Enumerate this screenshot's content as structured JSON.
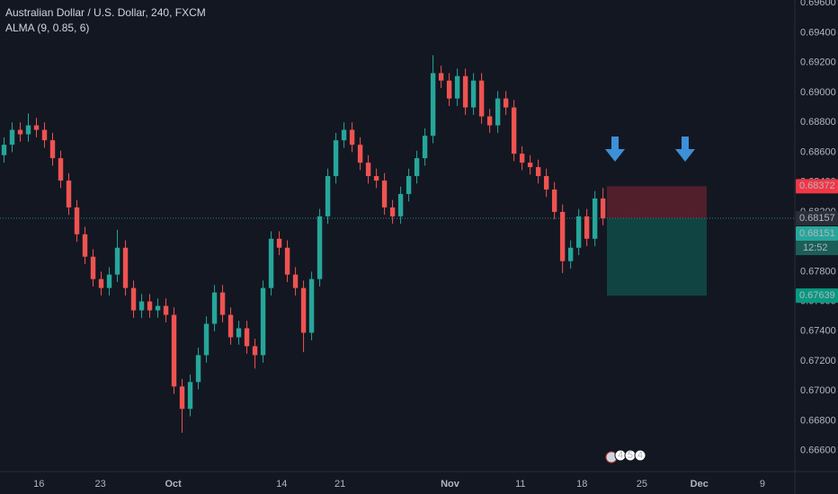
{
  "chart_data": {
    "type": "candlestick",
    "title": "Australian Dollar / U.S. Dollar, 240, FXCM",
    "subtitle": "ALMA (9, 0.85, 6)",
    "up_color": "#26a69a",
    "down_color": "#ef5350",
    "grid": true,
    "xlim": [
      0,
      98.2
    ],
    "xticks": [
      {
        "value": 4.8,
        "label": "16"
      },
      {
        "value": 12.4,
        "label": "23"
      },
      {
        "value": 21.4,
        "label": "Oct"
      },
      {
        "value": 34.8,
        "label": "14"
      },
      {
        "value": 42,
        "label": "21"
      },
      {
        "value": 55.6,
        "label": "Nov"
      },
      {
        "value": 64.3,
        "label": "11"
      },
      {
        "value": 71.9,
        "label": "18"
      },
      {
        "value": 79.3,
        "label": "25"
      },
      {
        "value": 86.4,
        "label": "Dec"
      },
      {
        "value": 94.2,
        "label": "9"
      }
    ],
    "ylim": [
      0.6646,
      0.6962
    ],
    "yticks": [
      {
        "value": 0.696,
        "label": "0.69600"
      },
      {
        "value": 0.694,
        "label": "0.69400"
      },
      {
        "value": 0.692,
        "label": "0.69200"
      },
      {
        "value": 0.69,
        "label": "0.69000"
      },
      {
        "value": 0.688,
        "label": "0.68800"
      },
      {
        "value": 0.686,
        "label": "0.68600"
      },
      {
        "value": 0.684,
        "label": "0.68400"
      },
      {
        "value": 0.682,
        "label": "0.68200"
      },
      {
        "value": 0.68,
        "label": "0.68000"
      },
      {
        "value": 0.678,
        "label": "0.67800"
      },
      {
        "value": 0.676,
        "label": "0.67600"
      },
      {
        "value": 0.674,
        "label": "0.67400"
      },
      {
        "value": 0.672,
        "label": "0.67200"
      },
      {
        "value": 0.67,
        "label": "0.67000"
      },
      {
        "value": 0.668,
        "label": "0.66800"
      },
      {
        "value": 0.666,
        "label": "0.66600"
      }
    ],
    "open": [
      0.6858,
      0.6865,
      0.6875,
      0.6872,
      0.6878,
      0.6875,
      0.6868,
      0.6856,
      0.6841,
      0.6823,
      0.6805,
      0.679,
      0.6775,
      0.6769,
      0.6778,
      0.6796,
      0.6769,
      0.6754,
      0.676,
      0.6754,
      0.6757,
      0.6751,
      0.6703,
      0.6688,
      0.6706,
      0.6724,
      0.6745,
      0.6766,
      0.6751,
      0.6736,
      0.6742,
      0.673,
      0.6724,
      0.6769,
      0.6802,
      0.6796,
      0.6778,
      0.6769,
      0.6739,
      0.6775,
      0.6817,
      0.6844,
      0.6868,
      0.6875,
      0.6865,
      0.6853,
      0.6844,
      0.6841,
      0.6823,
      0.6817,
      0.6832,
      0.6844,
      0.6856,
      0.6871,
      0.6913,
      0.6908,
      0.6896,
      0.6911,
      0.689,
      0.6908,
      0.6884,
      0.6878,
      0.6896,
      0.689,
      0.6859,
      0.6853,
      0.685,
      0.6844,
      0.6835,
      0.682,
      0.6787,
      0.6796,
      0.6817,
      0.6802,
      0.6829
    ],
    "high": [
      0.687,
      0.688,
      0.688,
      0.6886,
      0.6883,
      0.688,
      0.6873,
      0.6861,
      0.6846,
      0.6828,
      0.681,
      0.6795,
      0.678,
      0.6783,
      0.6808,
      0.6801,
      0.6774,
      0.6765,
      0.6765,
      0.6762,
      0.6762,
      0.6756,
      0.6708,
      0.6711,
      0.6729,
      0.675,
      0.6771,
      0.6771,
      0.6756,
      0.6747,
      0.6747,
      0.6735,
      0.6774,
      0.6807,
      0.6807,
      0.6801,
      0.6783,
      0.6774,
      0.678,
      0.6822,
      0.6849,
      0.6873,
      0.688,
      0.688,
      0.687,
      0.6858,
      0.6849,
      0.6846,
      0.6828,
      0.6837,
      0.6849,
      0.6861,
      0.6876,
      0.6925,
      0.6918,
      0.6913,
      0.6916,
      0.6916,
      0.6913,
      0.6913,
      0.6889,
      0.6901,
      0.6901,
      0.6895,
      0.6864,
      0.6858,
      0.6855,
      0.6849,
      0.684,
      0.6825,
      0.6801,
      0.6822,
      0.6822,
      0.6834,
      0.6836
    ],
    "low": [
      0.6853,
      0.686,
      0.6867,
      0.6867,
      0.687,
      0.6863,
      0.6851,
      0.6836,
      0.6818,
      0.68,
      0.6785,
      0.677,
      0.6764,
      0.6764,
      0.6773,
      0.6764,
      0.6749,
      0.6749,
      0.6749,
      0.6749,
      0.6746,
      0.6698,
      0.6672,
      0.6683,
      0.6701,
      0.6719,
      0.674,
      0.6746,
      0.6731,
      0.6731,
      0.6725,
      0.6715,
      0.6719,
      0.6764,
      0.6791,
      0.6773,
      0.6764,
      0.6726,
      0.6734,
      0.677,
      0.6812,
      0.6839,
      0.6863,
      0.686,
      0.6848,
      0.6839,
      0.6836,
      0.6818,
      0.6812,
      0.6812,
      0.6827,
      0.6839,
      0.6851,
      0.6866,
      0.6903,
      0.6891,
      0.6891,
      0.6885,
      0.6885,
      0.6879,
      0.6873,
      0.6873,
      0.6885,
      0.6854,
      0.6848,
      0.6845,
      0.6839,
      0.683,
      0.6815,
      0.6779,
      0.6782,
      0.6791,
      0.6797,
      0.6797,
      0.6811
    ],
    "close": [
      0.6865,
      0.6875,
      0.6872,
      0.6878,
      0.6875,
      0.6868,
      0.6856,
      0.6841,
      0.6823,
      0.6805,
      0.679,
      0.6775,
      0.6769,
      0.6778,
      0.6796,
      0.6769,
      0.6754,
      0.676,
      0.6754,
      0.6757,
      0.6751,
      0.6703,
      0.6688,
      0.6706,
      0.6724,
      0.6745,
      0.6766,
      0.6751,
      0.6736,
      0.6742,
      0.673,
      0.6724,
      0.6769,
      0.6802,
      0.6796,
      0.6778,
      0.6769,
      0.6739,
      0.6775,
      0.6817,
      0.6844,
      0.6868,
      0.6875,
      0.6865,
      0.6853,
      0.6844,
      0.6841,
      0.6823,
      0.6817,
      0.6832,
      0.6844,
      0.6856,
      0.6871,
      0.6913,
      0.6908,
      0.6896,
      0.6911,
      0.689,
      0.6908,
      0.6884,
      0.6878,
      0.6896,
      0.689,
      0.6859,
      0.6853,
      0.685,
      0.6844,
      0.6835,
      0.682,
      0.6787,
      0.6796,
      0.6817,
      0.6802,
      0.6829,
      0.68157
    ],
    "position": {
      "stop": 0.68372,
      "entry": 0.68157,
      "target": 0.67639,
      "stop_color": "#f23645",
      "target_color": "#089981"
    },
    "last_price": 0.68157,
    "bid": 0.68151,
    "countdown": "12:52",
    "events": [
      "4",
      "5",
      "4"
    ]
  }
}
